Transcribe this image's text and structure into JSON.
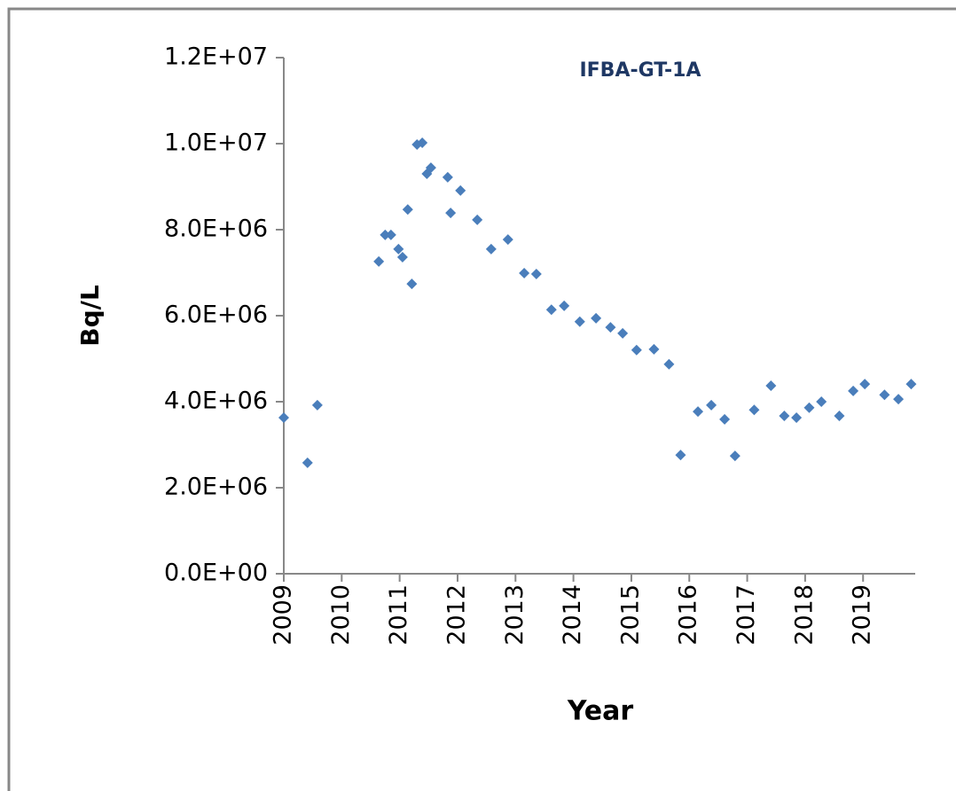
{
  "chart_data": {
    "type": "scatter",
    "title": "IFBA-GT-1A",
    "xlabel": "Year",
    "ylabel": "Bq/L",
    "color": "#4a7ebb",
    "x": [
      2009.0,
      2009.41,
      2009.58,
      2010.64,
      2010.75,
      2010.85,
      2010.98,
      2011.05,
      2011.14,
      2011.21,
      2011.3,
      2011.39,
      2011.47,
      2011.54,
      2011.83,
      2011.88,
      2012.05,
      2012.34,
      2012.58,
      2012.87,
      2013.15,
      2013.36,
      2013.62,
      2013.84,
      2014.11,
      2014.39,
      2014.64,
      2014.85,
      2015.09,
      2015.39,
      2015.65,
      2015.85,
      2016.15,
      2016.38,
      2016.61,
      2016.79,
      2017.12,
      2017.41,
      2017.64,
      2017.85,
      2018.07,
      2018.28,
      2018.59,
      2018.83,
      2019.03,
      2019.37,
      2019.61,
      2019.83
    ],
    "values": [
      3630000,
      2580000,
      3920000,
      7260000,
      7880000,
      7880000,
      7550000,
      7360000,
      8470000,
      6740000,
      9980000,
      10020000,
      9300000,
      9440000,
      9220000,
      8390000,
      8910000,
      8230000,
      7550000,
      7770000,
      6990000,
      6970000,
      6140000,
      6230000,
      5860000,
      5940000,
      5730000,
      5590000,
      5200000,
      5220000,
      4870000,
      2760000,
      3770000,
      3920000,
      3590000,
      2740000,
      3810000,
      4370000,
      3670000,
      3630000,
      3860000,
      4000000,
      3670000,
      4250000,
      4410000,
      4160000,
      4060000,
      4410000
    ],
    "xlim": [
      2009,
      2019.9
    ],
    "xticks": [
      2009,
      2010,
      2011,
      2012,
      2013,
      2014,
      2015,
      2016,
      2017,
      2018,
      2019
    ],
    "ylim": [
      0,
      12000000
    ],
    "yticks": [
      {
        "value": 0,
        "label": "0.0E+00"
      },
      {
        "value": 2000000,
        "label": "2.0E+06"
      },
      {
        "value": 4000000,
        "label": "4.0E+06"
      },
      {
        "value": 6000000,
        "label": "6.0E+06"
      },
      {
        "value": 8000000,
        "label": "8.0E+06"
      },
      {
        "value": 10000000,
        "label": "1.0E+07"
      },
      {
        "value": 12000000,
        "label": "1.2E+07"
      }
    ],
    "grid": false
  }
}
